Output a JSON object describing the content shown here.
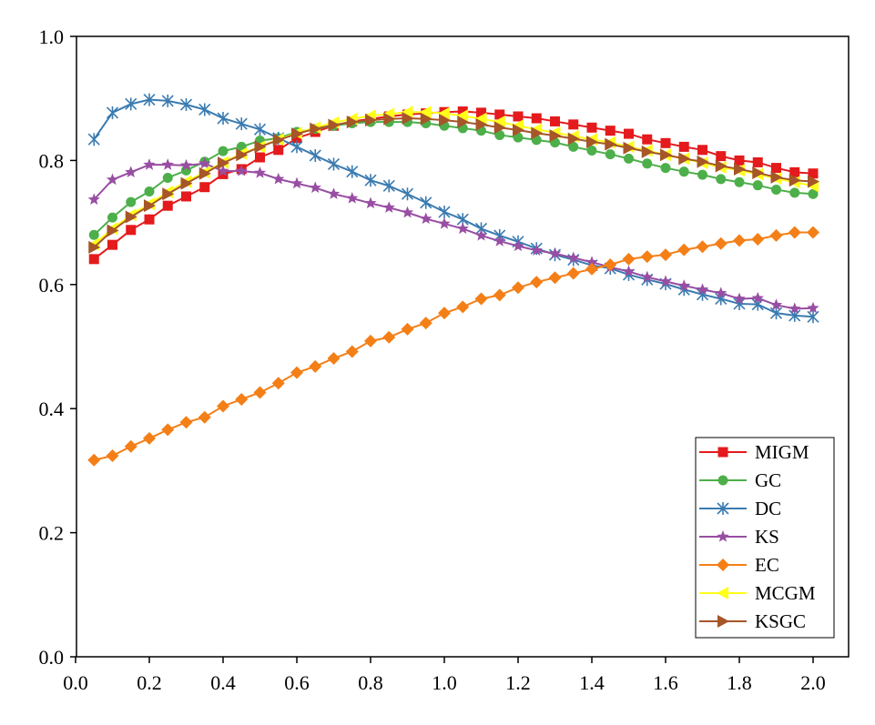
{
  "chart_data": {
    "type": "line",
    "title": "",
    "xlabel": "",
    "ylabel": "",
    "xlim": [
      0.0,
      2.1
    ],
    "ylim": [
      0.0,
      1.0
    ],
    "x_ticks": [
      0.0,
      0.2,
      0.4,
      0.6,
      0.8,
      1.0,
      1.2,
      1.4,
      1.6,
      1.8,
      2.0
    ],
    "x_tick_labels": [
      "0.0",
      "0.2",
      "0.4",
      "0.6",
      "0.8",
      "1.0",
      "1.2",
      "1.4",
      "1.6",
      "1.8",
      "2.0"
    ],
    "y_ticks": [
      0.0,
      0.2,
      0.4,
      0.6,
      0.8,
      1.0
    ],
    "y_tick_labels": [
      "0.0",
      "0.2",
      "0.4",
      "0.6",
      "0.8",
      "1.0"
    ],
    "grid": false,
    "legend_position": "bottom-right",
    "x": [
      0.05,
      0.1,
      0.15,
      0.2,
      0.25,
      0.3,
      0.35,
      0.4,
      0.45,
      0.5,
      0.55,
      0.6,
      0.65,
      0.7,
      0.75,
      0.8,
      0.85,
      0.9,
      0.95,
      1.0,
      1.05,
      1.1,
      1.15,
      1.2,
      1.25,
      1.3,
      1.35,
      1.4,
      1.45,
      1.5,
      1.55,
      1.6,
      1.65,
      1.7,
      1.75,
      1.8,
      1.85,
      1.9,
      1.95,
      2.0
    ],
    "series": [
      {
        "name": "MIGM",
        "color": "#e41a1c",
        "marker": "square",
        "values": [
          0.641,
          0.664,
          0.688,
          0.705,
          0.727,
          0.742,
          0.757,
          0.778,
          0.786,
          0.805,
          0.817,
          0.836,
          0.846,
          0.856,
          0.863,
          0.867,
          0.871,
          0.874,
          0.876,
          0.878,
          0.879,
          0.877,
          0.874,
          0.871,
          0.868,
          0.863,
          0.858,
          0.853,
          0.848,
          0.843,
          0.834,
          0.828,
          0.822,
          0.817,
          0.807,
          0.8,
          0.797,
          0.788,
          0.781,
          0.779
        ]
      },
      {
        "name": "GC",
        "color": "#4daf4a",
        "marker": "circle",
        "values": [
          0.68,
          0.708,
          0.733,
          0.75,
          0.772,
          0.784,
          0.798,
          0.815,
          0.822,
          0.832,
          0.836,
          0.846,
          0.851,
          0.856,
          0.86,
          0.862,
          0.862,
          0.862,
          0.86,
          0.856,
          0.852,
          0.848,
          0.841,
          0.837,
          0.833,
          0.829,
          0.822,
          0.816,
          0.81,
          0.803,
          0.795,
          0.788,
          0.782,
          0.777,
          0.77,
          0.765,
          0.76,
          0.753,
          0.748,
          0.746
        ]
      },
      {
        "name": "DC",
        "color": "#3a7bb0",
        "marker": "asterisk",
        "values": [
          0.834,
          0.877,
          0.891,
          0.898,
          0.896,
          0.89,
          0.882,
          0.868,
          0.859,
          0.85,
          0.836,
          0.822,
          0.808,
          0.794,
          0.782,
          0.768,
          0.759,
          0.746,
          0.732,
          0.717,
          0.705,
          0.69,
          0.679,
          0.669,
          0.658,
          0.648,
          0.64,
          0.631,
          0.626,
          0.616,
          0.608,
          0.601,
          0.592,
          0.584,
          0.577,
          0.569,
          0.568,
          0.554,
          0.55,
          0.548
        ]
      },
      {
        "name": "KS",
        "color": "#984ea3",
        "marker": "star",
        "values": [
          0.737,
          0.769,
          0.781,
          0.793,
          0.793,
          0.792,
          0.795,
          0.783,
          0.783,
          0.78,
          0.77,
          0.763,
          0.756,
          0.746,
          0.739,
          0.731,
          0.724,
          0.716,
          0.706,
          0.698,
          0.69,
          0.679,
          0.67,
          0.662,
          0.655,
          0.65,
          0.643,
          0.636,
          0.628,
          0.621,
          0.612,
          0.605,
          0.598,
          0.592,
          0.586,
          0.577,
          0.578,
          0.567,
          0.561,
          0.562
        ]
      },
      {
        "name": "EC",
        "color": "#f47f17",
        "marker": "diamond",
        "values": [
          0.317,
          0.324,
          0.339,
          0.352,
          0.366,
          0.378,
          0.386,
          0.404,
          0.415,
          0.426,
          0.441,
          0.458,
          0.468,
          0.481,
          0.492,
          0.509,
          0.515,
          0.528,
          0.538,
          0.554,
          0.564,
          0.577,
          0.583,
          0.595,
          0.604,
          0.611,
          0.618,
          0.625,
          0.632,
          0.641,
          0.645,
          0.648,
          0.656,
          0.661,
          0.666,
          0.671,
          0.673,
          0.679,
          0.684,
          0.684
        ]
      },
      {
        "name": "MCGM",
        "color": "#ffff1a",
        "marker": "triangle-left",
        "values": [
          0.665,
          0.69,
          0.712,
          0.73,
          0.749,
          0.766,
          0.781,
          0.797,
          0.811,
          0.822,
          0.834,
          0.844,
          0.853,
          0.861,
          0.867,
          0.872,
          0.875,
          0.878,
          0.878,
          0.876,
          0.872,
          0.867,
          0.862,
          0.856,
          0.85,
          0.845,
          0.839,
          0.834,
          0.829,
          0.822,
          0.816,
          0.809,
          0.803,
          0.796,
          0.789,
          0.784,
          0.778,
          0.771,
          0.765,
          0.759
        ]
      },
      {
        "name": "KSGC",
        "color": "#a65628",
        "marker": "triangle-right",
        "values": [
          0.66,
          0.687,
          0.709,
          0.727,
          0.746,
          0.763,
          0.779,
          0.796,
          0.809,
          0.822,
          0.833,
          0.843,
          0.851,
          0.857,
          0.862,
          0.865,
          0.867,
          0.868,
          0.867,
          0.865,
          0.862,
          0.858,
          0.853,
          0.849,
          0.844,
          0.84,
          0.835,
          0.83,
          0.826,
          0.82,
          0.814,
          0.809,
          0.803,
          0.798,
          0.791,
          0.786,
          0.78,
          0.773,
          0.768,
          0.766
        ]
      }
    ]
  }
}
